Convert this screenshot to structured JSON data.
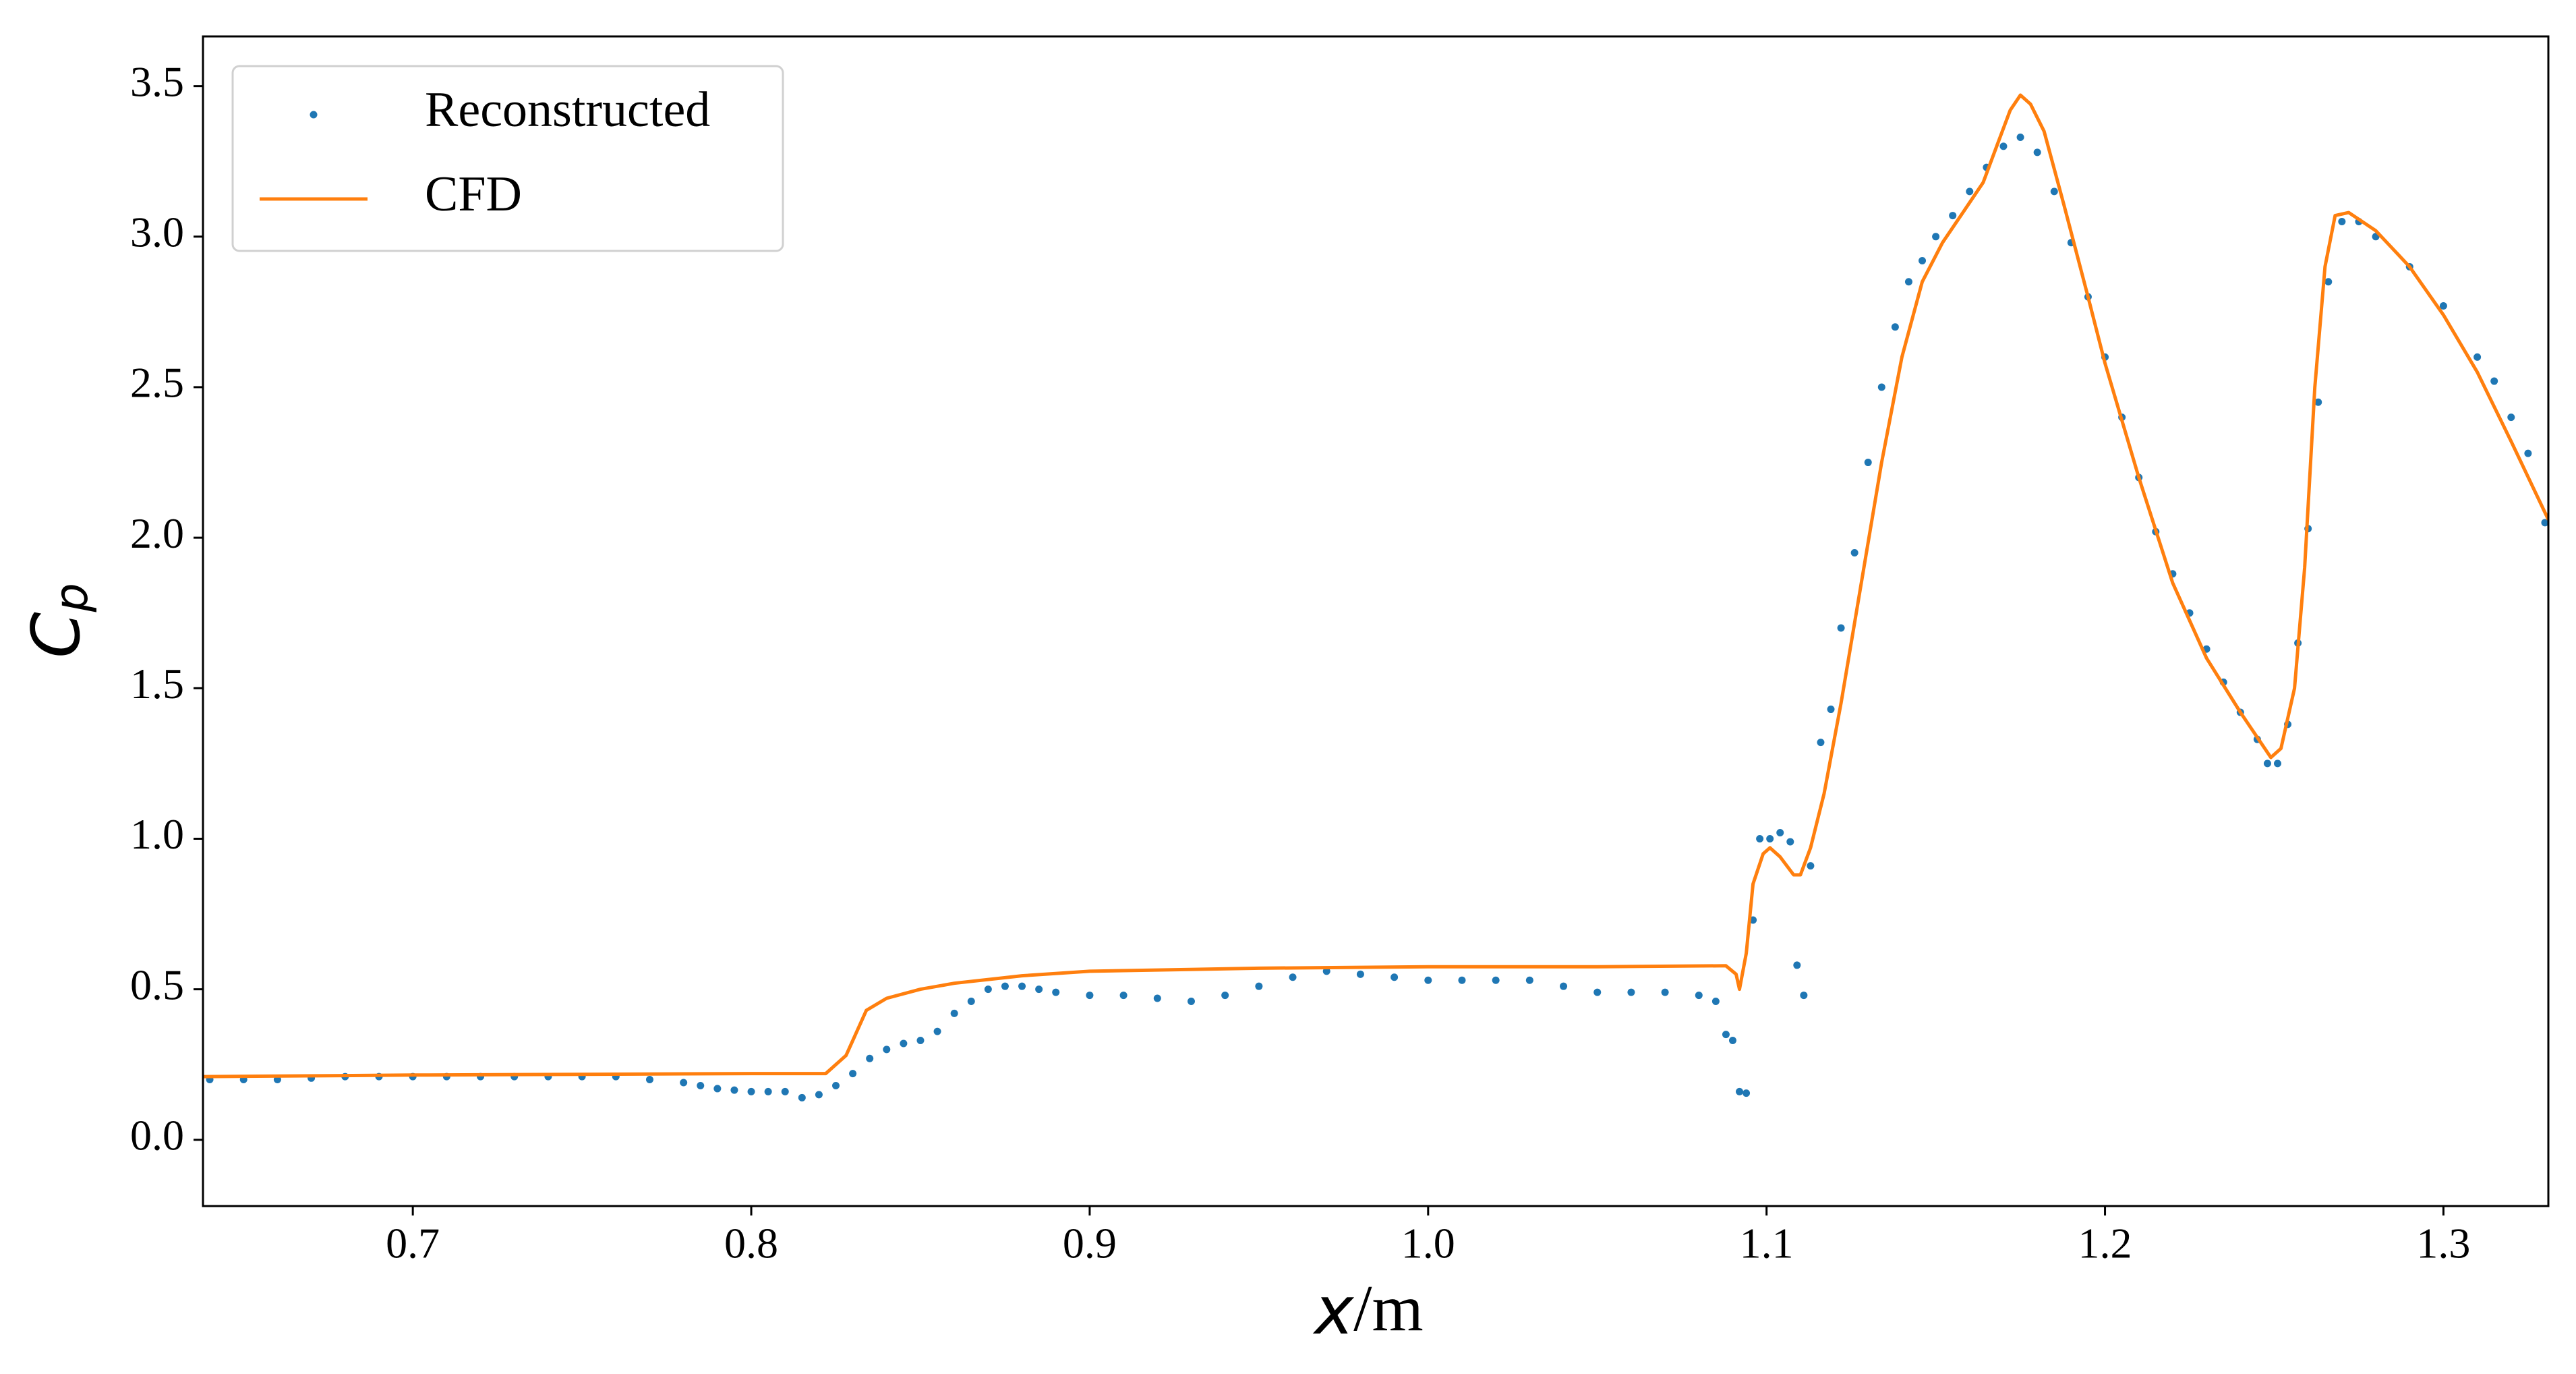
{
  "chart_data": {
    "type": "line",
    "xlabel": [
      "x",
      "/m"
    ],
    "ylabel": {
      "base": "C",
      "subscript": "p"
    },
    "xlim": [
      0.638,
      1.331
    ],
    "ylim": [
      -0.22,
      3.665
    ],
    "xticks": [
      0.7,
      0.8,
      0.9,
      {
        "value": 1.0,
        "label": "1.0"
      },
      1.1,
      1.2,
      1.3
    ],
    "yticks": [
      {
        "value": 0,
        "label": "0.0"
      },
      0.5,
      {
        "value": 1,
        "label": "1.0"
      },
      1.5,
      {
        "value": 2,
        "label": "2.0"
      },
      2.5,
      {
        "value": 3,
        "label": "3.0"
      },
      3.5
    ],
    "grid": false,
    "legend": "upper left",
    "series": [
      {
        "name": "Reconstructed",
        "color": "#1f77b4",
        "style": "dots",
        "x": [
          0.64,
          0.65,
          0.66,
          0.67,
          0.68,
          0.69,
          0.7,
          0.71,
          0.72,
          0.73,
          0.74,
          0.75,
          0.76,
          0.77,
          0.78,
          0.785,
          0.79,
          0.795,
          0.8,
          0.805,
          0.81,
          0.815,
          0.82,
          0.825,
          0.83,
          0.835,
          0.84,
          0.845,
          0.85,
          0.855,
          0.86,
          0.865,
          0.87,
          0.875,
          0.88,
          0.885,
          0.89,
          0.9,
          0.91,
          0.92,
          0.93,
          0.94,
          0.95,
          0.96,
          0.97,
          0.98,
          0.99,
          1.0,
          1.01,
          1.02,
          1.03,
          1.04,
          1.05,
          1.06,
          1.07,
          1.08,
          1.085,
          1.088,
          1.09,
          1.092,
          1.094,
          1.096,
          1.098,
          1.101,
          1.104,
          1.107,
          1.109,
          1.111,
          1.113,
          1.116,
          1.119,
          1.122,
          1.126,
          1.13,
          1.134,
          1.138,
          1.142,
          1.146,
          1.15,
          1.155,
          1.16,
          1.165,
          1.17,
          1.175,
          1.18,
          1.185,
          1.19,
          1.195,
          1.2,
          1.205,
          1.21,
          1.215,
          1.22,
          1.225,
          1.23,
          1.235,
          1.24,
          1.245,
          1.248,
          1.251,
          1.254,
          1.257,
          1.26,
          1.263,
          1.266,
          1.27,
          1.275,
          1.28,
          1.29,
          1.3,
          1.31,
          1.315,
          1.32,
          1.325,
          1.33
        ],
        "values": [
          0.2,
          0.2,
          0.2,
          0.205,
          0.21,
          0.21,
          0.21,
          0.21,
          0.21,
          0.21,
          0.21,
          0.21,
          0.21,
          0.2,
          0.19,
          0.18,
          0.17,
          0.165,
          0.16,
          0.16,
          0.16,
          0.14,
          0.15,
          0.18,
          0.22,
          0.27,
          0.3,
          0.32,
          0.33,
          0.36,
          0.42,
          0.46,
          0.5,
          0.51,
          0.51,
          0.5,
          0.49,
          0.48,
          0.48,
          0.47,
          0.46,
          0.48,
          0.51,
          0.54,
          0.56,
          0.55,
          0.54,
          0.53,
          0.53,
          0.53,
          0.53,
          0.51,
          0.49,
          0.49,
          0.49,
          0.48,
          0.46,
          0.35,
          0.33,
          0.16,
          0.155,
          0.73,
          1.0,
          1.0,
          1.02,
          0.99,
          0.58,
          0.48,
          0.91,
          1.32,
          1.43,
          1.7,
          1.95,
          2.25,
          2.5,
          2.7,
          2.85,
          2.92,
          3.0,
          3.07,
          3.15,
          3.23,
          3.3,
          3.33,
          3.28,
          3.15,
          2.98,
          2.8,
          2.6,
          2.4,
          2.2,
          2.02,
          1.88,
          1.75,
          1.63,
          1.52,
          1.42,
          1.33,
          1.25,
          1.25,
          1.38,
          1.65,
          2.03,
          2.45,
          2.85,
          3.05,
          3.05,
          3.0,
          2.9,
          2.77,
          2.6,
          2.52,
          2.4,
          2.28,
          2.05
        ]
      },
      {
        "name": "CFD",
        "color": "#ff7f0e",
        "style": "line",
        "x": [
          0.638,
          0.7,
          0.8,
          0.822,
          0.828,
          0.834,
          0.84,
          0.85,
          0.86,
          0.88,
          0.9,
          0.95,
          1.0,
          1.05,
          1.088,
          1.091,
          1.092,
          1.094,
          1.096,
          1.099,
          1.101,
          1.104,
          1.108,
          1.11,
          1.113,
          1.117,
          1.122,
          1.128,
          1.134,
          1.14,
          1.146,
          1.152,
          1.158,
          1.164,
          1.168,
          1.172,
          1.175,
          1.178,
          1.182,
          1.188,
          1.195,
          1.2,
          1.21,
          1.22,
          1.23,
          1.24,
          1.246,
          1.249,
          1.252,
          1.256,
          1.259,
          1.262,
          1.265,
          1.268,
          1.272,
          1.28,
          1.29,
          1.3,
          1.31,
          1.32,
          1.331
        ],
        "values": [
          0.21,
          0.215,
          0.22,
          0.22,
          0.28,
          0.43,
          0.47,
          0.5,
          0.52,
          0.545,
          0.56,
          0.57,
          0.575,
          0.575,
          0.578,
          0.55,
          0.5,
          0.62,
          0.85,
          0.95,
          0.97,
          0.94,
          0.88,
          0.88,
          0.97,
          1.15,
          1.45,
          1.85,
          2.25,
          2.6,
          2.85,
          2.98,
          3.08,
          3.18,
          3.3,
          3.42,
          3.47,
          3.44,
          3.35,
          3.1,
          2.8,
          2.58,
          2.2,
          1.85,
          1.6,
          1.42,
          1.32,
          1.27,
          1.3,
          1.5,
          1.9,
          2.5,
          2.9,
          3.07,
          3.08,
          3.02,
          2.9,
          2.74,
          2.55,
          2.32,
          2.06
        ]
      }
    ]
  }
}
